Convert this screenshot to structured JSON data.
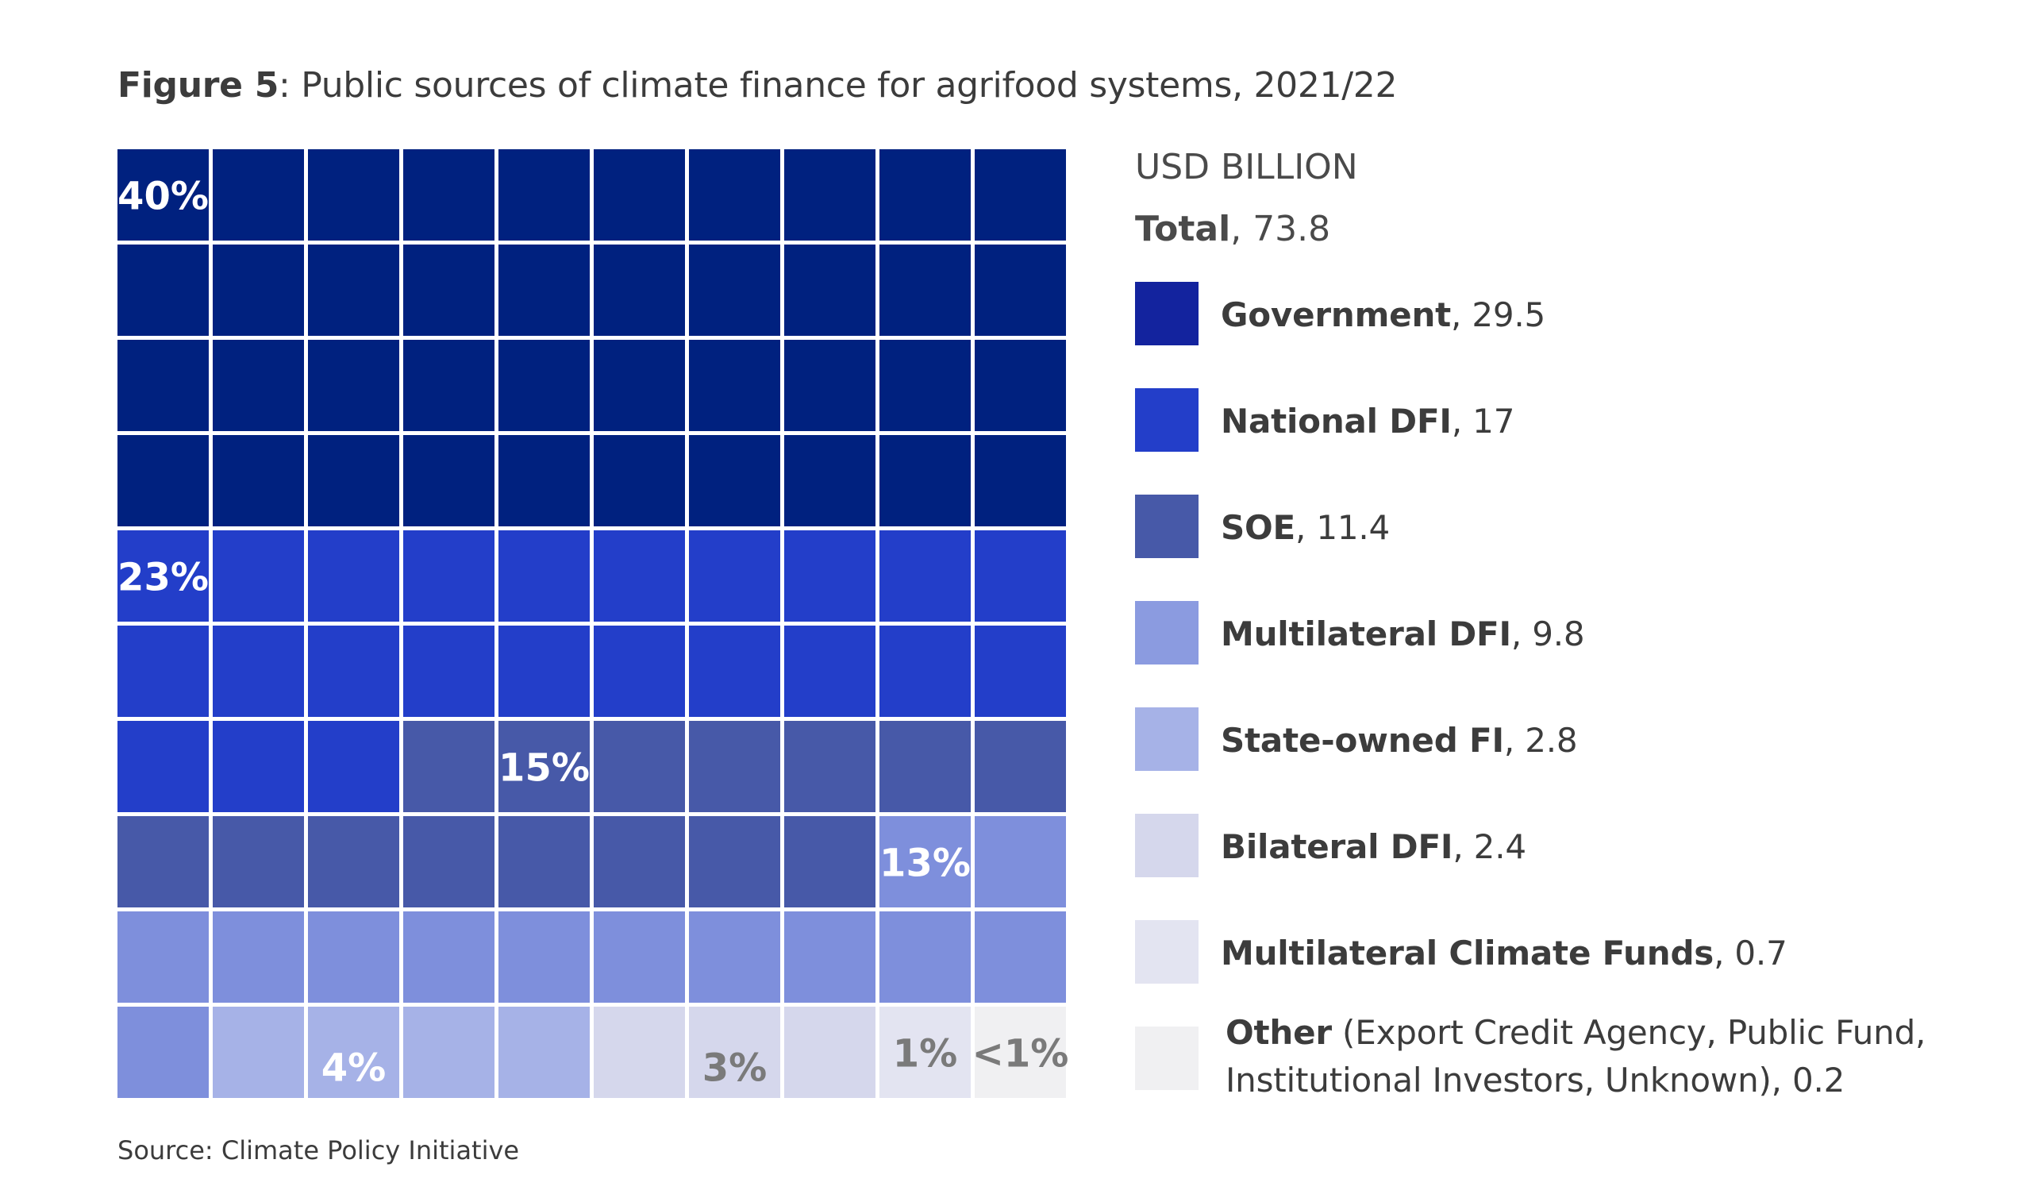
{
  "header": {
    "figure_label": "Figure 5",
    "title_text": ": Public sources of climate finance for agrifood systems, 2021/22"
  },
  "legend": {
    "unit": "USD BILLION",
    "total_label": "Total",
    "total_value": ", 73.8",
    "items": [
      {
        "name": "Government",
        "value_text": ", 29.5",
        "color": "#13239e"
      },
      {
        "name": "National DFI",
        "value_text": ", 17",
        "color": "#233ec9"
      },
      {
        "name": "SOE",
        "value_text": ", 11.4",
        "color": "#4759a8"
      },
      {
        "name": "Multilateral DFI",
        "value_text": ", 9.8",
        "color": "#8b9be0"
      },
      {
        "name": "State-owned FI",
        "value_text": ", 2.8",
        "color": "#a6b2e7"
      },
      {
        "name": "Bilateral DFI",
        "value_text": ", 2.4",
        "color": "#d5d7ec"
      },
      {
        "name": "Multilateral Climate Funds",
        "value_text": ", 0.7",
        "color": "#e3e4f1"
      },
      {
        "name": "Other",
        "value_text": " (Export Credit Agency, Public Fund, Institutional Investors, Unknown), 0.2",
        "color": "#f0f0f2"
      }
    ]
  },
  "chart_data": {
    "type": "waffle",
    "grid": [
      10,
      10
    ],
    "categories": [
      "Government",
      "National DFI",
      "SOE",
      "Multilateral DFI",
      "State-owned FI",
      "Bilateral DFI",
      "Multilateral Climate Funds",
      "Other"
    ],
    "values": [
      29.5,
      17,
      11.4,
      9.8,
      2.8,
      2.4,
      0.7,
      0.2
    ],
    "tiles": [
      40,
      23,
      15,
      13,
      4,
      3,
      1,
      1
    ],
    "percent_labels": [
      "40%",
      "23%",
      "15%",
      "13%",
      "4%",
      "3%",
      "1%",
      "<1%"
    ],
    "tile_colors": [
      "#00217f",
      "#233ec9",
      "#4759a8",
      "#7e8fdc",
      "#a6b2e7",
      "#d5d7ec",
      "#e3e4f1",
      "#f0f0f2"
    ],
    "label_colors": [
      "#ffffff",
      "#ffffff",
      "#ffffff",
      "#ffffff",
      "#ffffff",
      "#7a7a7a",
      "#7a7a7a",
      "#7a7a7a"
    ]
  },
  "source": "Source: Climate Policy Initiative"
}
